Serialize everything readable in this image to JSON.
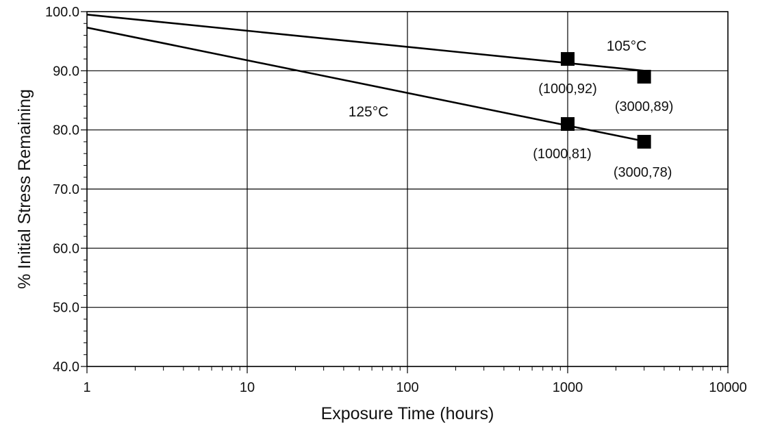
{
  "chart_data": {
    "type": "line",
    "xscale": "log",
    "xlabel": "Exposure Time (hours)",
    "ylabel": "% Initial Stress Remaining",
    "xlim": [
      1,
      10000
    ],
    "ylim": [
      40,
      100
    ],
    "grid": true,
    "x_ticks": [
      1,
      10,
      100,
      1000,
      10000
    ],
    "x_tick_labels": [
      "1",
      "10",
      "100",
      "1000",
      "10000"
    ],
    "y_ticks": [
      40,
      50,
      60,
      70,
      80,
      90,
      100
    ],
    "y_tick_labels": [
      "40.0",
      "50.0",
      "60.0",
      "70.0",
      "80.0",
      "90.0",
      "100.0"
    ],
    "series": [
      {
        "name": "105°C",
        "line": {
          "x": [
            1,
            3000
          ],
          "y": [
            99.5,
            90.0
          ]
        },
        "points": [
          {
            "x": 1000,
            "y": 92,
            "label": "(1000,92)"
          },
          {
            "x": 3000,
            "y": 89,
            "label": "(3000,89)"
          }
        ]
      },
      {
        "name": "125°C",
        "line": {
          "x": [
            1,
            3000
          ],
          "y": [
            97.3,
            78.1
          ]
        },
        "points": [
          {
            "x": 1000,
            "y": 81,
            "label": "(1000,81)"
          },
          {
            "x": 3000,
            "y": 78,
            "label": "(3000,78)"
          }
        ]
      }
    ]
  }
}
